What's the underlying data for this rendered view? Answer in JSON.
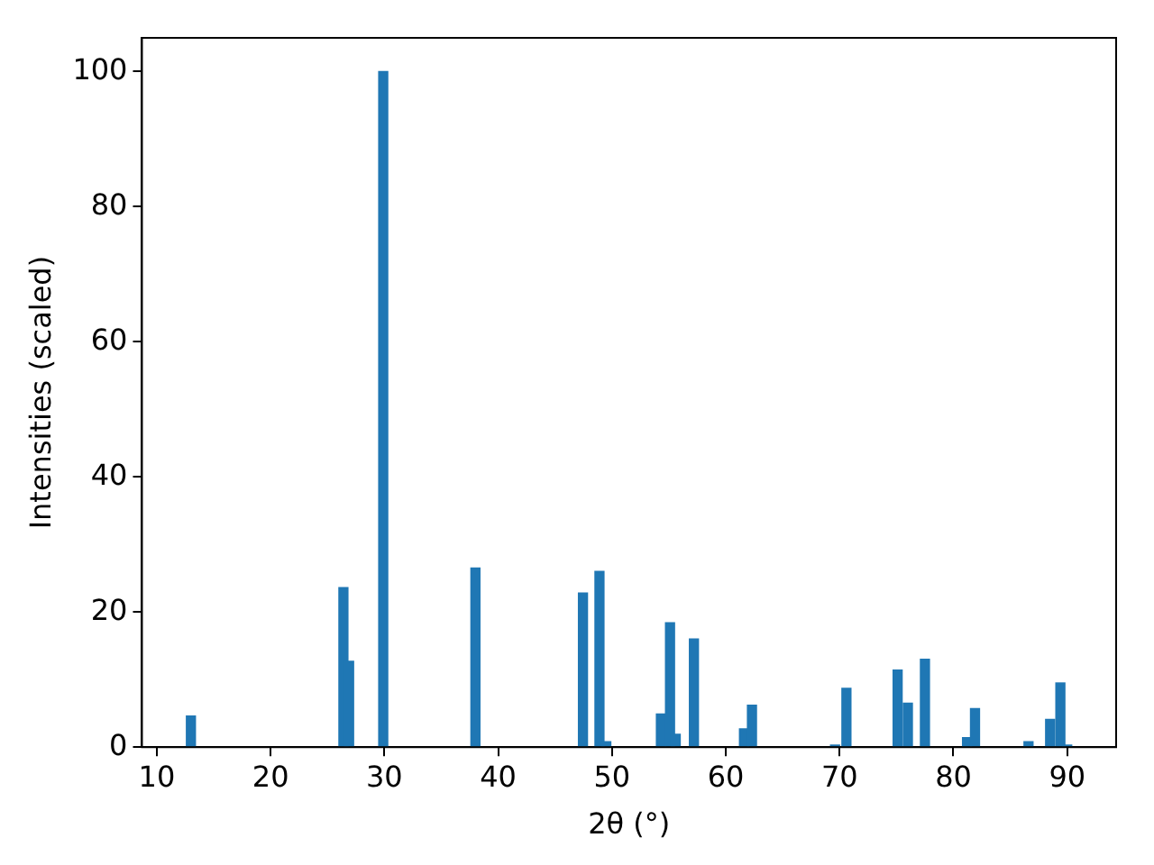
{
  "chart_data": {
    "type": "bar",
    "xlabel": "2θ (°)",
    "ylabel": "Intensities (scaled)",
    "x": [
      13.0,
      26.4,
      26.9,
      29.9,
      38.0,
      47.45,
      48.9,
      49.5,
      54.3,
      55.1,
      55.6,
      57.2,
      61.6,
      62.3,
      69.6,
      70.6,
      75.1,
      75.6,
      76.0,
      77.5,
      81.2,
      81.9,
      86.6,
      88.5,
      89.0,
      89.4,
      90.0
    ],
    "values": [
      4.6,
      23.6,
      12.7,
      100,
      26.5,
      22.8,
      26.0,
      0.8,
      4.9,
      18.4,
      1.9,
      16.0,
      2.7,
      6.2,
      0.3,
      8.7,
      11.4,
      null,
      6.5,
      13.0,
      1.4,
      5.7,
      0.8,
      4.1,
      null,
      9.5,
      0.3
    ],
    "color": "#1f77b4",
    "xlim": [
      8.7,
      94.3
    ],
    "xticks": [
      10,
      20,
      30,
      40,
      50,
      60,
      70,
      80,
      90
    ],
    "ylim": [
      0,
      105
    ],
    "yticks": [
      0,
      20,
      40,
      60,
      80,
      100
    ],
    "grid": false,
    "legend": false
  }
}
